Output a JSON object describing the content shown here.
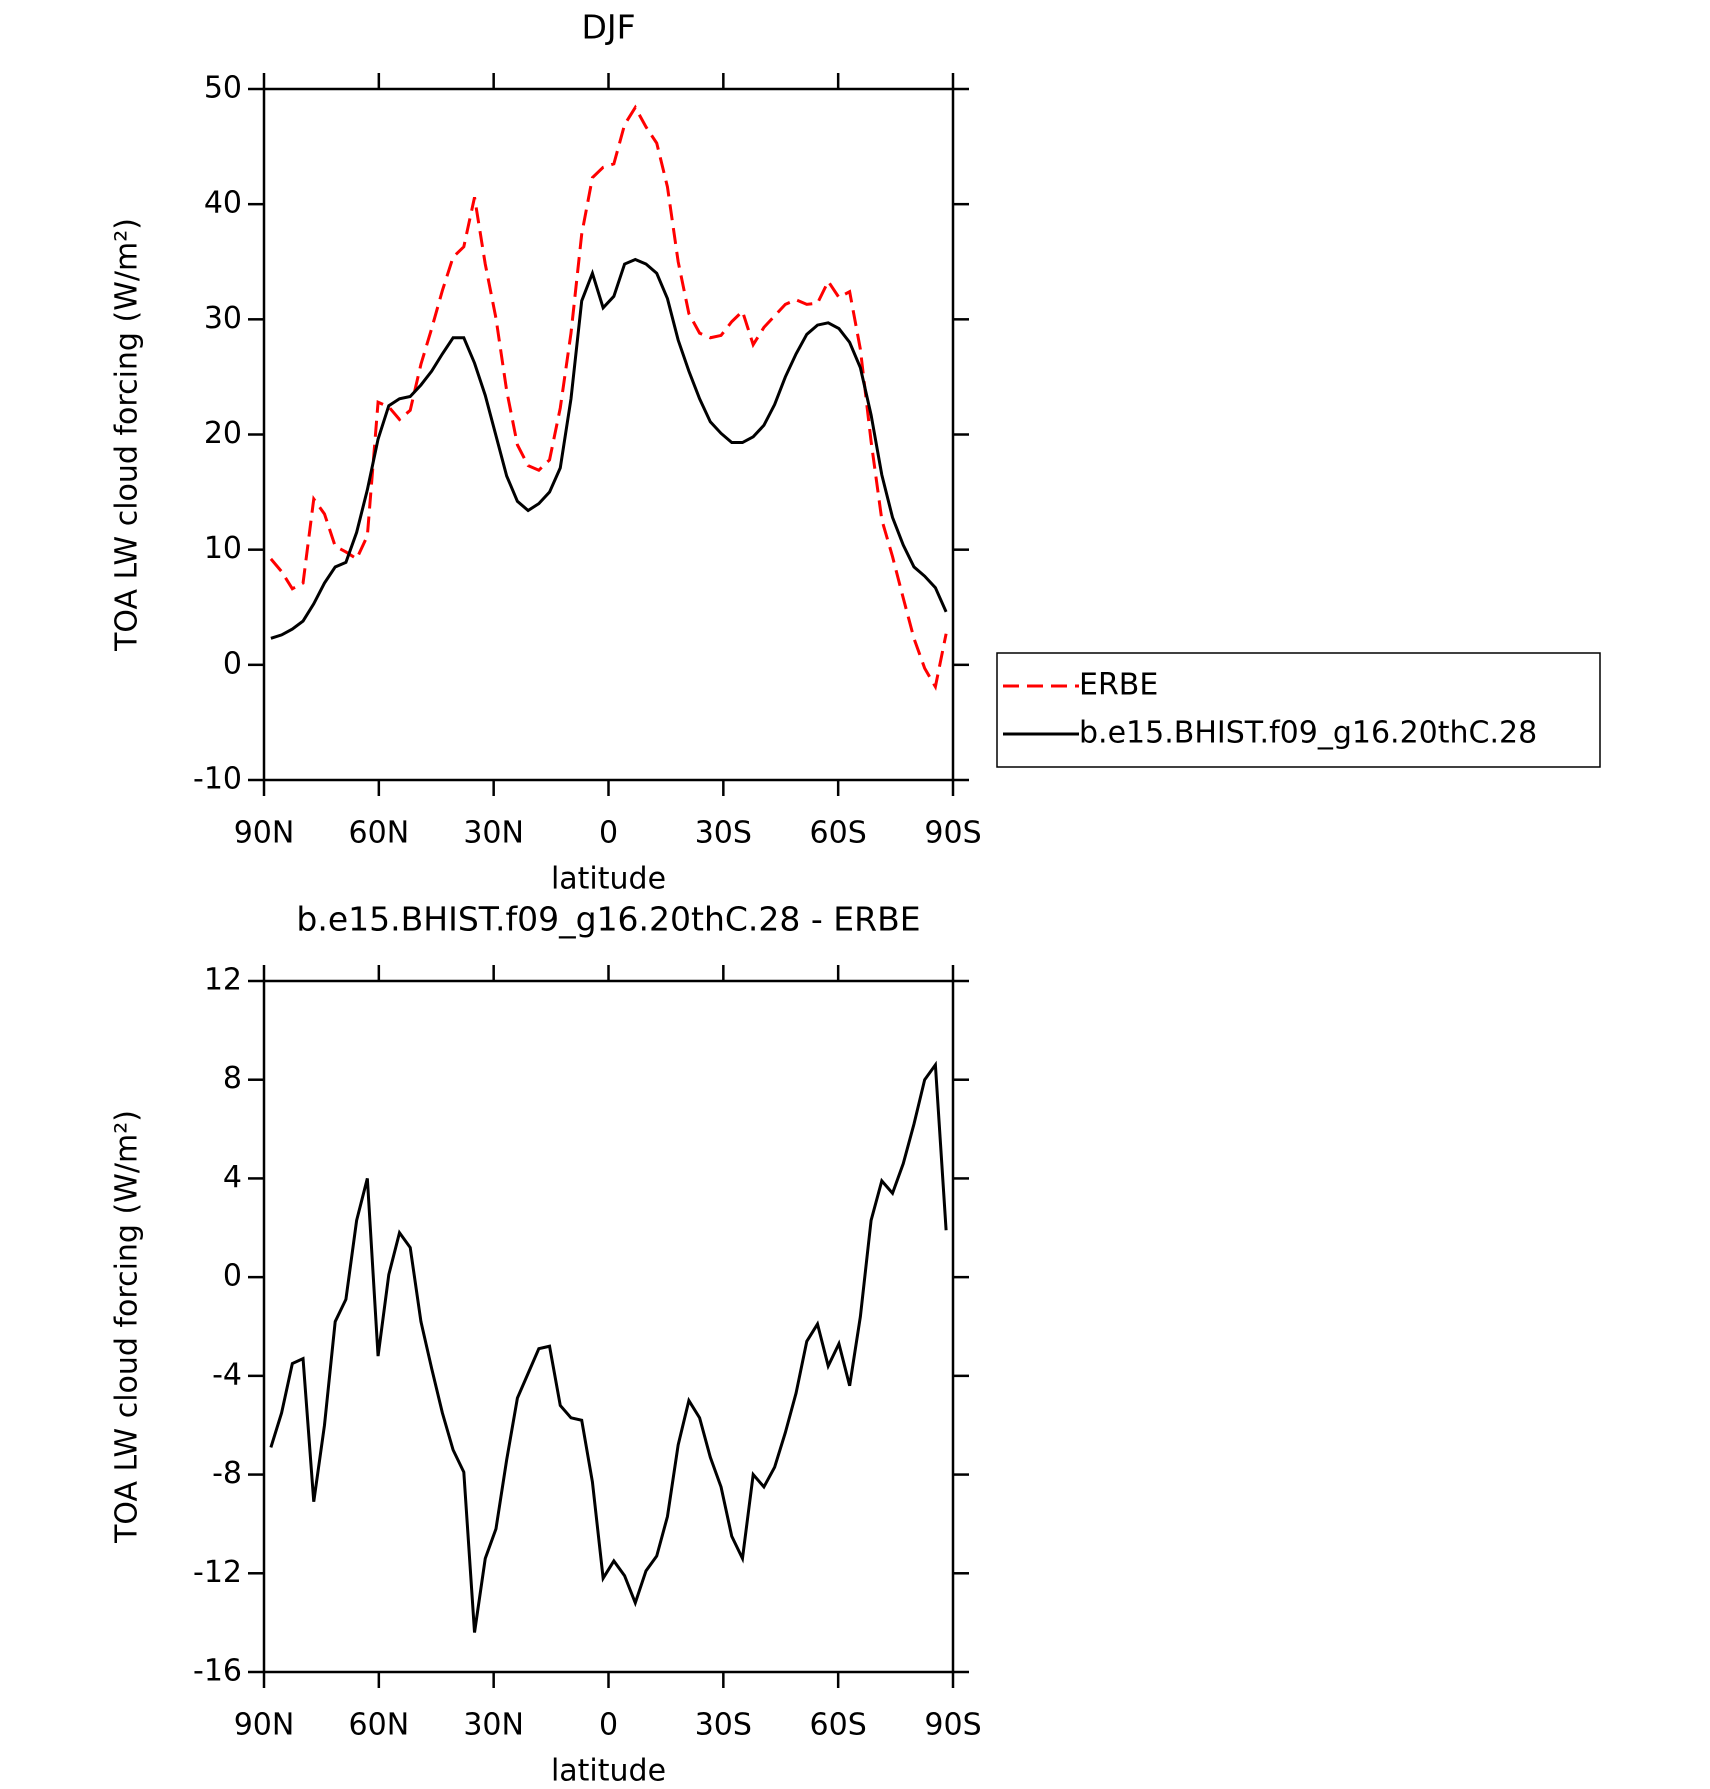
{
  "chart_data": [
    {
      "type": "line",
      "title": "DJF",
      "xlabel": "latitude",
      "ylabel": "TOA LW cloud forcing (W/m²)",
      "x": [
        88.2,
        85.4,
        82.6,
        79.8,
        77.0,
        74.2,
        71.4,
        68.6,
        65.8,
        63.0,
        60.2,
        57.4,
        54.6,
        51.8,
        49.0,
        46.2,
        43.4,
        40.6,
        37.8,
        35.0,
        32.2,
        29.4,
        26.6,
        23.8,
        21.0,
        18.2,
        15.4,
        12.6,
        9.8,
        7.0,
        4.2,
        1.4,
        -1.4,
        -4.2,
        -7.0,
        -9.8,
        -12.6,
        -15.4,
        -18.2,
        -21.0,
        -23.8,
        -26.6,
        -29.4,
        -32.2,
        -35.0,
        -37.8,
        -40.6,
        -43.4,
        -46.2,
        -49.0,
        -51.8,
        -54.6,
        -57.4,
        -60.2,
        -63.0,
        -65.8,
        -68.6,
        -71.4,
        -74.2,
        -77.0,
        -79.8,
        -82.6,
        -85.4,
        -88.2
      ],
      "series": [
        {
          "name": "ERBE",
          "color": "#ff0000",
          "dashed": true,
          "values": [
            9.2,
            8.1,
            6.6,
            7.1,
            14.4,
            13.1,
            10.3,
            9.8,
            9.2,
            11.2,
            22.8,
            22.4,
            21.3,
            22.1,
            26.1,
            29.2,
            32.5,
            35.4,
            36.3,
            40.6,
            34.8,
            30.1,
            23.8,
            19.1,
            17.3,
            16.9,
            17.8,
            22.3,
            28.8,
            37.4,
            42.3,
            43.2,
            43.5,
            46.9,
            48.4,
            46.7,
            45.3,
            41.5,
            35.0,
            30.5,
            28.8,
            28.4,
            28.6,
            29.8,
            30.7,
            27.8,
            29.3,
            30.3,
            31.3,
            31.7,
            31.3,
            31.4,
            33.3,
            31.9,
            32.4,
            27.4,
            19.4,
            12.6,
            9.4,
            5.8,
            2.3,
            -0.3,
            -1.9,
            2.7
          ]
        },
        {
          "name": "b.e15.BHIST.f09_g16.20thC.28",
          "color": "#000000",
          "dashed": false,
          "values": [
            2.3,
            2.6,
            3.1,
            3.8,
            5.3,
            7.1,
            8.5,
            8.9,
            11.5,
            15.2,
            19.6,
            22.5,
            23.1,
            23.3,
            24.3,
            25.5,
            27.0,
            28.4,
            28.4,
            26.2,
            23.4,
            19.9,
            16.4,
            14.2,
            13.4,
            14.0,
            15.0,
            17.1,
            23.1,
            31.6,
            34.0,
            31.0,
            32.0,
            34.8,
            35.2,
            34.8,
            34.0,
            31.8,
            28.2,
            25.5,
            23.1,
            21.1,
            20.1,
            19.3,
            19.3,
            19.8,
            20.8,
            22.6,
            25.0,
            27.0,
            28.7,
            29.5,
            29.7,
            29.2,
            28.0,
            25.8,
            21.7,
            16.5,
            12.8,
            10.4,
            8.5,
            7.7,
            6.7,
            4.6
          ]
        }
      ],
      "xlim": [
        90,
        -90
      ],
      "ylim": [
        -10,
        50
      ],
      "xticks": [
        {
          "value": 90,
          "label": "90N"
        },
        {
          "value": 60,
          "label": "60N"
        },
        {
          "value": 30,
          "label": "30N"
        },
        0,
        {
          "value": -30,
          "label": "30S"
        },
        {
          "value": -60,
          "label": "60S"
        },
        {
          "value": -90,
          "label": "90S"
        }
      ],
      "yticks": [
        -10,
        0,
        10,
        20,
        30,
        40,
        50
      ],
      "legend": "right"
    },
    {
      "type": "line",
      "title": "b.e15.BHIST.f09_g16.20thC.28 - ERBE",
      "xlabel": "latitude",
      "ylabel": "TOA LW cloud forcing (W/m²)",
      "x": [
        88.2,
        85.4,
        82.6,
        79.8,
        77.0,
        74.2,
        71.4,
        68.6,
        65.8,
        63.0,
        60.2,
        57.4,
        54.6,
        51.8,
        49.0,
        46.2,
        43.4,
        40.6,
        37.8,
        35.0,
        32.2,
        29.4,
        26.6,
        23.8,
        21.0,
        18.2,
        15.4,
        12.6,
        9.8,
        7.0,
        4.2,
        1.4,
        -1.4,
        -4.2,
        -7.0,
        -9.8,
        -12.6,
        -15.4,
        -18.2,
        -21.0,
        -23.8,
        -26.6,
        -29.4,
        -32.2,
        -35.0,
        -37.8,
        -40.6,
        -43.4,
        -46.2,
        -49.0,
        -51.8,
        -54.6,
        -57.4,
        -60.2,
        -63.0,
        -65.8,
        -68.6,
        -71.4,
        -74.2,
        -77.0,
        -79.8,
        -82.6,
        -85.4,
        -88.2
      ],
      "series": [
        {
          "color": "#000000",
          "dashed": false,
          "values": [
            -6.9,
            -5.5,
            -3.5,
            -3.3,
            -9.1,
            -6.0,
            -1.8,
            -0.9,
            2.3,
            4.0,
            -3.2,
            0.1,
            1.8,
            1.2,
            -1.8,
            -3.7,
            -5.5,
            -7.0,
            -7.9,
            -14.4,
            -11.4,
            -10.2,
            -7.4,
            -4.9,
            -3.9,
            -2.9,
            -2.8,
            -5.2,
            -5.7,
            -5.8,
            -8.3,
            -12.2,
            -11.5,
            -12.1,
            -13.2,
            -11.9,
            -11.3,
            -9.7,
            -6.8,
            -5.0,
            -5.7,
            -7.3,
            -8.5,
            -10.5,
            -11.4,
            -8.0,
            -8.5,
            -7.7,
            -6.3,
            -4.7,
            -2.6,
            -1.9,
            -3.6,
            -2.7,
            -4.4,
            -1.6,
            2.3,
            3.9,
            3.4,
            4.6,
            6.2,
            8.0,
            8.6,
            1.9
          ]
        }
      ],
      "xlim": [
        90,
        -90
      ],
      "ylim": [
        -16,
        12
      ],
      "xticks": [
        {
          "value": 90,
          "label": "90N"
        },
        {
          "value": 60,
          "label": "60N"
        },
        {
          "value": 30,
          "label": "30N"
        },
        0,
        {
          "value": -30,
          "label": "30S"
        },
        {
          "value": -60,
          "label": "60S"
        },
        {
          "value": -90,
          "label": "90S"
        }
      ],
      "yticks": [
        -16,
        -12,
        -8,
        -4,
        0,
        4,
        8,
        12
      ]
    }
  ]
}
